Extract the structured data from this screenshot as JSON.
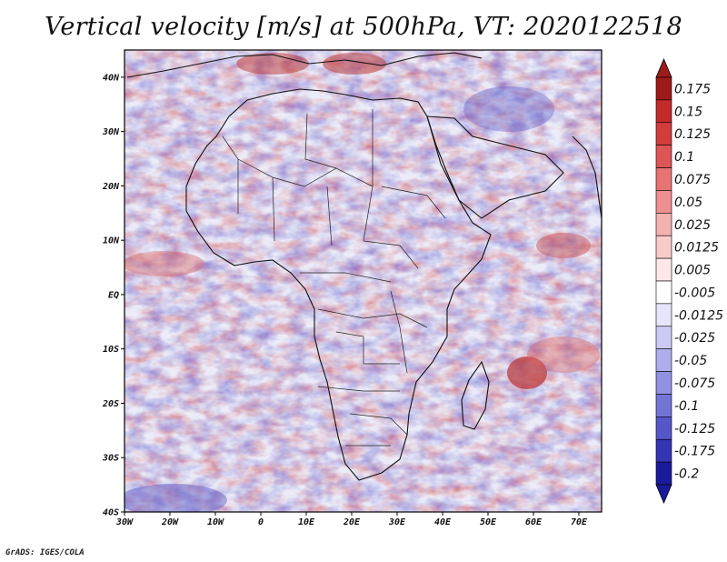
{
  "title": "Vertical velocity [m/s] at 500hPa, VT: 2020122518",
  "credit": "GrADS: IGES/COLA",
  "map": {
    "lat_labels": [
      "40N",
      "30N",
      "20N",
      "10N",
      "EQ",
      "10S",
      "20S",
      "30S",
      "40S"
    ],
    "lon_labels": [
      "30W",
      "20W",
      "10W",
      "0",
      "10E",
      "20E",
      "30E",
      "40E",
      "50E",
      "60E",
      "70E"
    ],
    "lat_range": [
      -40,
      45
    ],
    "lon_range": [
      -30,
      75
    ]
  },
  "colorbar": {
    "labels": [
      "0.175",
      "0.15",
      "0.125",
      "0.1",
      "0.075",
      "0.05",
      "0.025",
      "0.0125",
      "0.005",
      "-0.005",
      "-0.0125",
      "-0.025",
      "-0.05",
      "-0.075",
      "-0.1",
      "-0.125",
      "-0.175",
      "-0.2"
    ],
    "colors": [
      "#9e1a1a",
      "#c42a2a",
      "#d23c3c",
      "#de5555",
      "#e87373",
      "#ef9090",
      "#f5b0b0",
      "#f9cccc",
      "#fde8e8",
      "#ffffff",
      "#e6e6fb",
      "#cacaf4",
      "#aeaeec",
      "#9292e2",
      "#7474d6",
      "#5656c8",
      "#3434b4",
      "#1a1a9a"
    ]
  }
}
